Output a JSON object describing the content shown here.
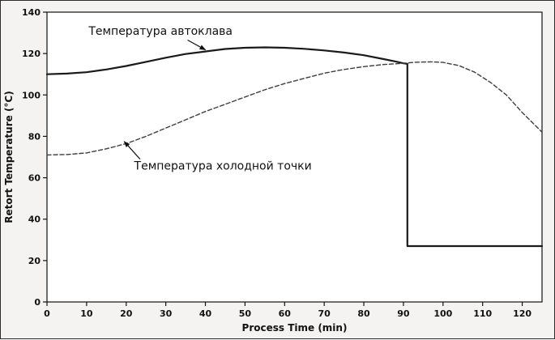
{
  "figure": {
    "title": "",
    "xlabel": "Process Time (min)",
    "ylabel": "Retort Temperature (°C)"
  },
  "chart_data": {
    "type": "line",
    "title": "",
    "xlabel": "Process Time (min)",
    "ylabel": "Retort Temperature (°C)",
    "xlim": [
      0,
      125
    ],
    "ylim": [
      0,
      140
    ],
    "xticks": [
      0,
      10,
      20,
      30,
      40,
      50,
      60,
      70,
      80,
      90,
      100,
      110,
      120
    ],
    "yticks": [
      0,
      20,
      40,
      60,
      80,
      100,
      120,
      140
    ],
    "grid": false,
    "legend_position": "none",
    "series": [
      {
        "name": "retort-temperature",
        "label": "Температура автоклава",
        "style": "solid",
        "color": "#1a1a1a",
        "width": 2.2,
        "x": [
          0,
          5,
          10,
          15,
          20,
          25,
          30,
          35,
          40,
          45,
          50,
          55,
          60,
          65,
          70,
          75,
          80,
          85,
          88,
          90,
          91,
          91,
          95,
          100,
          105,
          110,
          115,
          120,
          125
        ],
        "y": [
          110,
          110.3,
          111,
          112.3,
          114,
          116,
          118,
          119.8,
          121,
          122.2,
          122.8,
          123,
          122.8,
          122.3,
          121.5,
          120.5,
          119.2,
          117.3,
          116.2,
          115.3,
          115,
          27,
          27,
          27,
          27,
          27,
          27,
          27,
          27
        ]
      },
      {
        "name": "cold-point-temperature",
        "label": "Температура холодной точки",
        "style": "dashed",
        "color": "#3d3d3d",
        "width": 1.4,
        "x": [
          0,
          5,
          10,
          15,
          20,
          25,
          30,
          35,
          40,
          45,
          50,
          55,
          60,
          65,
          70,
          75,
          80,
          85,
          90,
          93,
          97,
          100,
          104,
          108,
          112,
          116,
          120,
          125
        ],
        "y": [
          71,
          71.2,
          72,
          74,
          76.5,
          80,
          84,
          88,
          92,
          95.5,
          99,
          102.5,
          105.5,
          108,
          110.5,
          112.3,
          113.7,
          114.7,
          115.3,
          115.8,
          116,
          115.7,
          114.2,
          111,
          106,
          100,
          91.5,
          82
        ]
      }
    ],
    "annotations": [
      {
        "text": "Температура автоклава",
        "anchor": "start",
        "text_xy": [
          10.5,
          129
        ],
        "arrow_from": [
          35.5,
          126.5
        ],
        "arrow_to": [
          40,
          121.8
        ]
      },
      {
        "text": "Температура холодной точки",
        "anchor": "start",
        "text_xy": [
          22,
          64
        ],
        "arrow_from": [
          23.5,
          69
        ],
        "arrow_to": [
          19.5,
          77.5
        ]
      }
    ]
  },
  "colors": {
    "background": "#f4f3f1",
    "plot_bg": "#ffffff",
    "axis": "#111111",
    "ink": "#111111"
  }
}
